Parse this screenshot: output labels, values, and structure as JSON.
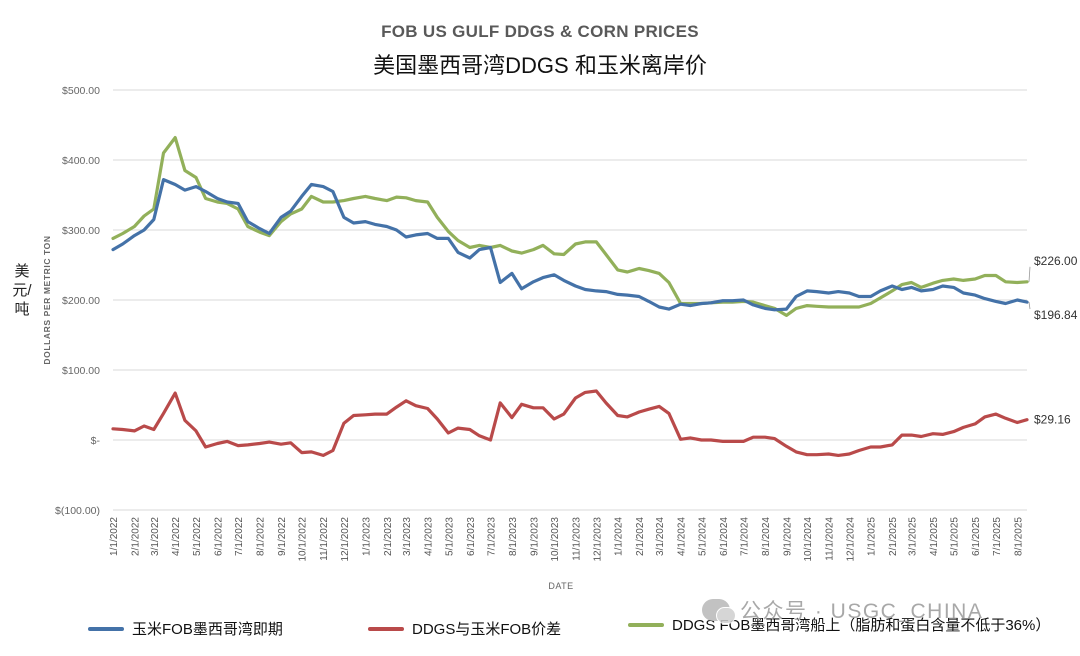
{
  "chart_data": {
    "type": "line",
    "title": "FOB US GULF DDGS & CORN PRICES",
    "subtitle": "美国墨西哥湾DDGS 和玉米离岸价",
    "ylabel": "DOLLARS PER METRIC TON",
    "ylabel_cn": "美元/吨",
    "xlabel": "DATE",
    "ylim": [
      -100,
      500
    ],
    "y_ticks": [
      500,
      400,
      300,
      200,
      100,
      0,
      -100
    ],
    "y_tick_labels": [
      "$500.00",
      "$400.00",
      "$300.00",
      "$200.00",
      "$100.00",
      "$-",
      "$(100.00)"
    ],
    "x_tick_labels": [
      "1/1/2022",
      "2/1/2022",
      "3/1/2022",
      "4/1/2022",
      "5/1/2022",
      "6/1/2022",
      "7/1/2022",
      "8/1/2022",
      "9/1/2022",
      "10/1/2022",
      "11/1/2022",
      "12/1/2022",
      "1/1/2023",
      "2/1/2023",
      "3/1/2023",
      "4/1/2023",
      "5/1/2023",
      "6/1/2023",
      "7/1/2023",
      "8/1/2023",
      "9/1/2023",
      "10/1/2023",
      "11/1/2023",
      "12/1/2023",
      "1/1/2024",
      "2/1/2024",
      "3/1/2024",
      "4/1/2024",
      "5/1/2024",
      "6/1/2024",
      "7/1/2024",
      "8/1/2024",
      "9/1/2024",
      "10/1/2024",
      "11/1/2024",
      "12/1/2024",
      "1/1/2025",
      "2/1/2025",
      "3/1/2025",
      "4/1/2025",
      "5/1/2025",
      "6/1/2025",
      "7/1/2025",
      "8/1/2025"
    ],
    "x": [
      "1/1/2022",
      "1/15/2022",
      "2/1/2022",
      "2/15/2022",
      "3/1/2022",
      "3/15/2022",
      "4/1/2022",
      "4/15/2022",
      "5/1/2022",
      "5/15/2022",
      "6/1/2022",
      "6/15/2022",
      "7/1/2022",
      "7/15/2022",
      "8/1/2022",
      "8/15/2022",
      "9/1/2022",
      "9/15/2022",
      "10/1/2022",
      "10/15/2022",
      "11/1/2022",
      "11/15/2022",
      "12/1/2022",
      "12/15/2022",
      "1/1/2023",
      "1/15/2023",
      "2/1/2023",
      "2/15/2023",
      "3/1/2023",
      "3/15/2023",
      "4/1/2023",
      "4/15/2023",
      "5/1/2023",
      "5/15/2023",
      "6/1/2023",
      "6/15/2023",
      "7/1/2023",
      "7/15/2023",
      "8/1/2023",
      "8/15/2023",
      "9/1/2023",
      "9/15/2023",
      "10/1/2023",
      "10/15/2023",
      "11/1/2023",
      "11/15/2023",
      "12/1/2023",
      "12/15/2023",
      "1/1/2024",
      "1/15/2024",
      "2/1/2024",
      "2/15/2024",
      "3/1/2024",
      "3/15/2024",
      "4/1/2024",
      "4/15/2024",
      "5/1/2024",
      "5/15/2024",
      "6/1/2024",
      "6/15/2024",
      "7/1/2024",
      "7/15/2024",
      "8/1/2024",
      "8/15/2024",
      "9/1/2024",
      "9/15/2024",
      "10/1/2024",
      "10/15/2024",
      "11/1/2024",
      "11/15/2024",
      "12/1/2024",
      "12/15/2024",
      "1/1/2025",
      "1/15/2025",
      "2/1/2025",
      "2/15/2025",
      "3/1/2025",
      "3/15/2025",
      "4/1/2025",
      "4/15/2025",
      "5/1/2025",
      "5/15/2025",
      "6/1/2025",
      "6/15/2025",
      "7/1/2025",
      "7/15/2025",
      "8/1/2025",
      "8/15/2025"
    ],
    "series": [
      {
        "name": "玉米FOB墨西哥湾即期",
        "color": "#4472A8",
        "values": [
          272,
          280,
          292,
          300,
          315,
          372,
          365,
          357,
          362,
          355,
          345,
          340,
          338,
          312,
          302,
          295,
          318,
          327,
          348,
          365,
          362,
          355,
          318,
          310,
          312,
          308,
          305,
          300,
          290,
          293,
          295,
          288,
          288,
          268,
          260,
          272,
          275,
          225,
          238,
          216,
          226,
          232,
          236,
          228,
          220,
          215,
          213,
          212,
          208,
          207,
          205,
          198,
          190,
          187,
          194,
          192,
          195,
          196,
          199,
          199,
          200,
          193,
          188,
          186,
          187,
          205,
          213,
          212,
          210,
          212,
          210,
          205,
          205,
          213,
          220,
          215,
          218,
          213,
          215,
          220,
          218,
          210,
          207,
          202,
          198,
          195,
          200,
          197
        ]
      },
      {
        "name": "DDGS FOB墨西哥湾船上（脂肪和蛋白含量不低于36%）",
        "color": "#92B05A",
        "values": [
          288,
          295,
          305,
          320,
          330,
          410,
          432,
          385,
          375,
          345,
          340,
          338,
          330,
          305,
          297,
          292,
          312,
          323,
          330,
          348,
          340,
          340,
          342,
          345,
          348,
          345,
          342,
          347,
          346,
          342,
          340,
          318,
          298,
          285,
          275,
          278,
          275,
          278,
          270,
          267,
          272,
          278,
          266,
          265,
          280,
          283,
          283,
          265,
          243,
          240,
          245,
          242,
          238,
          225,
          195,
          195,
          195,
          196,
          197,
          197,
          198,
          197,
          192,
          188,
          178,
          188,
          192,
          191,
          190,
          190,
          190,
          190,
          195,
          203,
          213,
          222,
          225,
          218,
          224,
          228,
          230,
          228,
          230,
          235,
          235,
          226,
          225,
          226
        ]
      },
      {
        "name": "DDGS与玉米FOB价差",
        "color": "#B94A4A",
        "values": [
          16,
          15,
          13,
          20,
          15,
          38,
          67,
          28,
          13,
          -10,
          -5,
          -2,
          -8,
          -7,
          -5,
          -3,
          -6,
          -4,
          -18,
          -17,
          -22,
          -15,
          24,
          35,
          36,
          37,
          37,
          47,
          56,
          49,
          45,
          30,
          10,
          17,
          15,
          6,
          0,
          53,
          32,
          51,
          46,
          46,
          30,
          37,
          60,
          68,
          70,
          53,
          35,
          33,
          40,
          44,
          48,
          38,
          1,
          3,
          0,
          0,
          -2,
          -2,
          -2,
          4,
          4,
          2,
          -9,
          -17,
          -21,
          -21,
          -20,
          -22,
          -20,
          -15,
          -10,
          -10,
          -7,
          7,
          7,
          5,
          9,
          8,
          12,
          18,
          23,
          33,
          37,
          31,
          25,
          29
        ]
      }
    ],
    "end_labels": [
      "$226.00",
      "$196.84",
      "$29.16"
    ],
    "grid": "horizontal",
    "legend_position": "bottom"
  },
  "watermark": "公众号 · USGC_CHINA"
}
